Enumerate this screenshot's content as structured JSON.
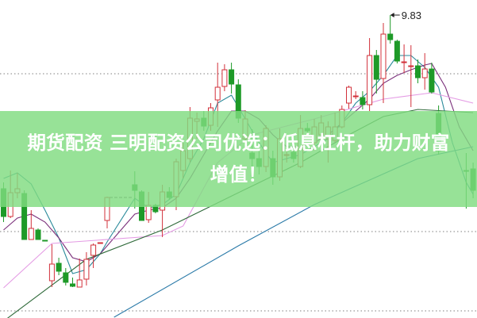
{
  "headline": {
    "line1": "期货配资 三明配资公司优选：低息杠杆，助力财富",
    "line2": "增值！"
  },
  "colors": {
    "up": "#d2303a",
    "down": "#1e9a28",
    "band": "#8fdf8f",
    "ma5": "#2a8a9a",
    "ma10": "#7a2f7a",
    "ma20": "#e49be4",
    "ma30": "#2f6a3a",
    "ma60": "#2a7aa8",
    "grid": "#999999"
  },
  "chart_data": {
    "type": "candlestick",
    "title": "",
    "ylim": [
      6.01,
      10.02
    ],
    "grid": "horizontal-dotted",
    "gridlines": [
      9.09,
      7.1,
      6.1
    ],
    "max_annotation": {
      "label": "9.83",
      "index": 56,
      "value": 9.83
    },
    "gap_level": 7.53,
    "candles": [
      [
        7.64,
        7.72,
        7.22,
        7.29
      ],
      [
        7.29,
        7.87,
        7.27,
        7.59
      ],
      [
        7.59,
        7.84,
        7.52,
        7.64
      ],
      [
        7.58,
        7.62,
        7.0,
        7.0
      ],
      [
        7.0,
        7.37,
        7.0,
        7.14
      ],
      [
        7.12,
        7.14,
        7.0,
        7.0
      ],
      [
        6.99,
        6.99,
        6.98,
        6.98
      ],
      [
        6.48,
        6.94,
        6.4,
        6.69
      ],
      [
        6.7,
        6.77,
        6.55,
        6.6
      ],
      [
        6.58,
        6.64,
        6.42,
        6.46
      ],
      [
        6.44,
        6.52,
        6.4,
        6.41
      ],
      [
        6.4,
        6.76,
        6.4,
        6.49
      ],
      [
        6.5,
        6.84,
        6.42,
        6.75
      ],
      [
        6.8,
        6.95,
        6.64,
        6.93
      ],
      [
        6.95,
        6.96,
        6.95,
        6.96
      ],
      [
        7.24,
        7.54,
        7.14,
        7.53
      ],
      null,
      null,
      null,
      [
        7.69,
        7.86,
        7.39,
        7.62
      ],
      [
        7.6,
        7.62,
        7.24,
        7.24
      ],
      [
        7.25,
        7.6,
        7.21,
        7.43
      ],
      [
        7.43,
        7.45,
        7.33,
        7.35
      ],
      [
        7.37,
        7.69,
        7.03,
        7.6
      ],
      [
        7.6,
        7.66,
        7.5,
        7.53
      ],
      [
        7.54,
        8.02,
        7.37,
        7.98
      ],
      [
        7.87,
        8.22,
        7.77,
        8.12
      ],
      [
        8.02,
        8.67,
        7.97,
        8.53
      ],
      [
        8.49,
        8.6,
        8.27,
        8.52
      ],
      [
        8.53,
        8.62,
        8.37,
        8.43
      ],
      [
        8.44,
        8.72,
        8.37,
        8.66
      ],
      [
        8.76,
        9.23,
        8.42,
        8.92
      ],
      [
        8.93,
        9.21,
        8.87,
        9.14
      ],
      [
        9.14,
        9.23,
        8.84,
        8.96
      ],
      [
        8.95,
        9.02,
        8.47,
        8.53
      ],
      [
        8.27,
        8.63,
        8.22,
        8.52
      ],
      [
        8.09,
        8.39,
        7.87,
        8.02
      ],
      [
        8.02,
        8.12,
        7.82,
        7.92
      ],
      [
        7.92,
        8.44,
        7.85,
        8.4
      ],
      [
        8.02,
        8.12,
        7.69,
        7.79
      ],
      [
        7.79,
        8.4,
        7.74,
        8.27
      ],
      [
        8.06,
        8.17,
        7.97,
        8.07
      ],
      [
        8.1,
        8.22,
        7.97,
        8.02
      ],
      [
        7.92,
        8.57,
        7.9,
        8.4
      ],
      [
        8.4,
        8.47,
        8.32,
        8.37
      ],
      [
        8.22,
        8.52,
        8.12,
        8.42
      ],
      [
        8.32,
        8.57,
        8.22,
        8.47
      ],
      [
        8.27,
        8.49,
        7.97,
        8.42
      ],
      [
        8.25,
        8.6,
        8.22,
        8.42
      ],
      [
        8.42,
        8.69,
        8.4,
        8.64
      ],
      [
        8.72,
        8.94,
        8.65,
        8.92
      ],
      [
        8.8,
        8.87,
        8.77,
        8.81
      ],
      [
        8.79,
        8.87,
        8.64,
        8.7
      ],
      [
        8.7,
        9.54,
        8.62,
        9.32
      ],
      [
        9.32,
        9.39,
        8.84,
        9.02
      ],
      [
        9.03,
        9.73,
        8.72,
        9.59
      ],
      [
        9.59,
        9.83,
        9.47,
        9.52
      ],
      [
        9.5,
        9.52,
        9.22,
        9.25
      ],
      [
        9.23,
        9.46,
        9.1,
        9.24
      ],
      [
        9.18,
        9.45,
        8.67,
        9.19
      ],
      [
        9.19,
        9.27,
        8.97,
        9.04
      ],
      [
        9.04,
        9.35,
        8.89,
        9.15
      ],
      [
        9.15,
        9.23,
        8.84,
        8.86
      ],
      [
        8.59,
        8.69,
        8.07,
        8.12
      ],
      null,
      null,
      null,
      [
        7.87,
        8.09,
        7.39,
        7.86
      ],
      [
        7.89,
        7.97,
        7.52,
        7.62
      ]
    ],
    "moving_averages": [
      {
        "key": "ma5",
        "points": [
          [
            0,
            7.77
          ],
          [
            2,
            7.84
          ],
          [
            4,
            7.7
          ],
          [
            6,
            7.37
          ],
          [
            8,
            7.02
          ],
          [
            10,
            6.57
          ],
          [
            12,
            6.62
          ],
          [
            14,
            6.82
          ],
          [
            15,
            6.97
          ],
          [
            19,
            7.52
          ],
          [
            21,
            7.4
          ],
          [
            23,
            7.44
          ],
          [
            25,
            7.57
          ],
          [
            27,
            7.97
          ],
          [
            29,
            8.27
          ],
          [
            31,
            8.72
          ],
          [
            33,
            8.82
          ],
          [
            35,
            8.52
          ],
          [
            37,
            8.22
          ],
          [
            39,
            7.97
          ],
          [
            41,
            8.02
          ],
          [
            43,
            8.07
          ],
          [
            45,
            8.17
          ],
          [
            47,
            8.27
          ],
          [
            49,
            8.47
          ],
          [
            51,
            8.72
          ],
          [
            53,
            8.87
          ],
          [
            55,
            9.07
          ],
          [
            57,
            9.32
          ],
          [
            59,
            9.32
          ],
          [
            61,
            9.17
          ],
          [
            63,
            8.92
          ],
          [
            65,
            8.22
          ],
          [
            67,
            7.72
          ],
          [
            68,
            7.57
          ]
        ]
      },
      {
        "key": "ma10",
        "points": [
          [
            0,
            7.12
          ],
          [
            2,
            7.27
          ],
          [
            4,
            7.32
          ],
          [
            6,
            7.22
          ],
          [
            8,
            7.02
          ],
          [
            10,
            6.77
          ],
          [
            12,
            6.72
          ],
          [
            14,
            6.82
          ],
          [
            16,
            7.02
          ],
          [
            19,
            7.32
          ],
          [
            21,
            7.37
          ],
          [
            23,
            7.4
          ],
          [
            25,
            7.52
          ],
          [
            27,
            7.77
          ],
          [
            29,
            8.07
          ],
          [
            31,
            8.37
          ],
          [
            33,
            8.62
          ],
          [
            35,
            8.62
          ],
          [
            37,
            8.52
          ],
          [
            39,
            8.32
          ],
          [
            41,
            8.17
          ],
          [
            43,
            8.17
          ],
          [
            45,
            8.22
          ],
          [
            47,
            8.32
          ],
          [
            49,
            8.47
          ],
          [
            51,
            8.62
          ],
          [
            53,
            8.77
          ],
          [
            55,
            8.97
          ],
          [
            57,
            9.07
          ],
          [
            59,
            9.14
          ],
          [
            61,
            9.2
          ],
          [
            62,
            9.22
          ],
          [
            64,
            8.92
          ],
          [
            66,
            8.42
          ],
          [
            68,
            8.12
          ]
        ]
      },
      {
        "key": "ma20",
        "points": [
          [
            0,
            6.39
          ],
          [
            7,
            6.95
          ],
          [
            23,
            7.05
          ],
          [
            26,
            7.17
          ],
          [
            31,
            7.97
          ],
          [
            36,
            8.32
          ],
          [
            45,
            8.52
          ],
          [
            55,
            8.77
          ],
          [
            62,
            8.85
          ],
          [
            68,
            8.72
          ]
        ]
      },
      {
        "key": "ma30",
        "points": [
          [
            0,
            5.97
          ],
          [
            12,
            6.75
          ],
          [
            23,
            7.12
          ],
          [
            34,
            7.59
          ],
          [
            43,
            7.97
          ],
          [
            50,
            8.32
          ],
          [
            55,
            8.55
          ],
          [
            60,
            8.64
          ],
          [
            68,
            8.6
          ]
        ]
      },
      {
        "key": "ma60",
        "points": [
          [
            16,
            6.02
          ],
          [
            34,
            6.92
          ],
          [
            45,
            7.44
          ],
          [
            60,
            8.02
          ],
          [
            68,
            8.17
          ]
        ]
      }
    ]
  }
}
